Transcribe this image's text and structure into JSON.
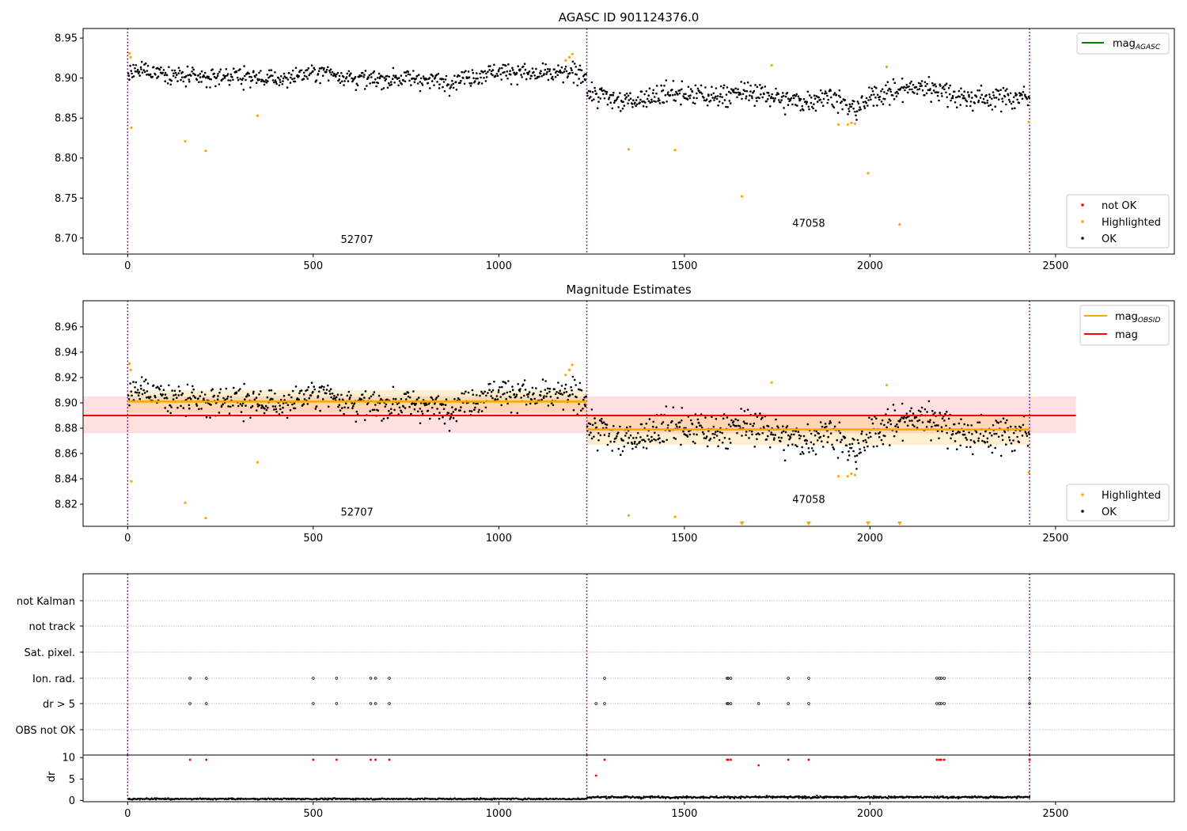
{
  "chart_data": [
    {
      "type": "scatter",
      "title": "AGASC ID 901124376.0",
      "xlim": [
        -120,
        2820
      ],
      "ylim": [
        8.68,
        8.962
      ],
      "xticks": [
        0,
        500,
        1000,
        1500,
        2000,
        2500
      ],
      "yticks": [
        8.7,
        8.75,
        8.8,
        8.85,
        8.9,
        8.95
      ],
      "ytick_decimals": 2,
      "grid": false,
      "obs_boundaries": [
        0,
        1237,
        2430
      ],
      "obs_labels": [
        {
          "text": "52707",
          "x": 618,
          "y": 8.694
        },
        {
          "text": "47058",
          "x": 1835,
          "y": 8.714
        }
      ],
      "ok_segments": [
        {
          "x0": 0,
          "x1": 1237,
          "mean": 8.902,
          "spread": 0.009
        },
        {
          "x0": 1237,
          "x1": 2430,
          "mean": 8.879,
          "spread": 0.011
        }
      ],
      "highlighted": {
        "x": [
          5,
          8,
          10,
          155,
          210,
          350,
          1180,
          1190,
          1198,
          1350,
          1475,
          1655,
          1735,
          1915,
          1940,
          1950,
          1960,
          1995,
          2045,
          2080,
          2428
        ],
        "y": [
          8.931,
          8.926,
          8.838,
          8.821,
          8.809,
          8.853,
          8.922,
          8.926,
          8.93,
          8.811,
          8.81,
          8.752,
          8.916,
          8.842,
          8.842,
          8.844,
          8.843,
          8.781,
          8.914,
          8.717,
          8.845
        ]
      },
      "legend_top": {
        "position": "upper right",
        "entries": [
          {
            "label": "mag",
            "sub": "AGASC",
            "color": "#008000"
          }
        ]
      },
      "legend_bottom": {
        "position": "lower right",
        "entries": [
          {
            "label": "not OK",
            "color": "#ff0000"
          },
          {
            "label": "Highlighted",
            "color": "#ffa500"
          },
          {
            "label": "OK",
            "color": "#000000"
          }
        ]
      }
    },
    {
      "type": "scatter",
      "title": "Magnitude Estimates",
      "xlim": [
        -120,
        2820
      ],
      "ylim": [
        8.8025,
        8.9806
      ],
      "xticks": [
        0,
        500,
        1000,
        1500,
        2000,
        2500
      ],
      "yticks": [
        8.82,
        8.84,
        8.86,
        8.88,
        8.9,
        8.92,
        8.94,
        8.96
      ],
      "ytick_decimals": 2,
      "grid": false,
      "obs_boundaries": [
        0,
        1237,
        2430
      ],
      "obs_labels": [
        {
          "text": "52707",
          "x": 618,
          "y": 8.811
        },
        {
          "text": "47058",
          "x": 1835,
          "y": 8.821
        }
      ],
      "mag": {
        "value": 8.89,
        "band": [
          8.876,
          8.905
        ],
        "x_range": [
          -120,
          2555
        ],
        "color": "#ff0000"
      },
      "mag_obsid": [
        {
          "x0": 0,
          "x1": 1237,
          "value": 8.901,
          "band": [
            8.892,
            8.91
          ]
        },
        {
          "x0": 1237,
          "x1": 2430,
          "value": 8.879,
          "band": [
            8.867,
            8.89
          ]
        }
      ],
      "highlighted": {
        "x": [
          5,
          8,
          10,
          155,
          210,
          350,
          1180,
          1190,
          1198,
          1350,
          1475,
          1735,
          1915,
          1940,
          1950,
          1960,
          2045,
          2428
        ],
        "y": [
          8.931,
          8.926,
          8.838,
          8.821,
          8.809,
          8.853,
          8.922,
          8.926,
          8.93,
          8.811,
          8.81,
          8.916,
          8.842,
          8.842,
          8.844,
          8.843,
          8.914,
          8.845
        ]
      },
      "below_range_markers_x": [
        1655,
        1835,
        1995,
        2080
      ],
      "legend_top": {
        "position": "upper right",
        "entries": [
          {
            "label": "mag",
            "sub": "OBSID",
            "color": "#ffa500"
          },
          {
            "label": "mag",
            "sub": "",
            "color": "#ff0000"
          }
        ]
      },
      "legend_bottom": {
        "position": "lower right",
        "entries": [
          {
            "label": "Highlighted",
            "color": "#ffa500"
          },
          {
            "label": "OK",
            "color": "#000000"
          }
        ]
      }
    },
    {
      "type": "scatter",
      "title": "",
      "xlim": [
        -120,
        2820
      ],
      "categories": [
        "not Kalman",
        "not track",
        "Sat. pixel.",
        "Ion. rad.",
        "dr > 5",
        "OBS not OK"
      ],
      "flags": {
        "Ion. rad.": [
          168,
          212,
          500,
          563,
          655,
          668,
          705,
          1285,
          1615,
          1618,
          1625,
          1780,
          1835,
          2180,
          2187,
          2192,
          2200,
          2430
        ],
        "dr > 5": [
          168,
          212,
          500,
          563,
          655,
          668,
          705,
          1262,
          1285,
          1615,
          1618,
          1625,
          1700,
          1780,
          1835,
          2180,
          2187,
          2192,
          2200,
          2430
        ]
      },
      "obs_boundaries": [
        0,
        1237,
        2430
      ]
    },
    {
      "type": "scatter",
      "title": "",
      "ylabel": "dr",
      "xlim": [
        -120,
        2820
      ],
      "ylim": [
        -0.3,
        10.6
      ],
      "xticks": [
        0,
        500,
        1000,
        1500,
        2000,
        2500
      ],
      "yticks": [
        0,
        5,
        10
      ],
      "ytick_decimals": 0,
      "typical_dr": [
        {
          "x0": 0,
          "x1": 1237,
          "mean": 0.35,
          "spread": 0.2
        },
        {
          "x0": 1237,
          "x1": 2430,
          "mean": 0.75,
          "spread": 0.3
        }
      ],
      "high_dr": {
        "x": [
          168,
          212,
          500,
          563,
          655,
          668,
          705,
          1262,
          1285,
          1615,
          1618,
          1625,
          1700,
          1780,
          1835,
          2180,
          2187,
          2192,
          2200,
          2430
        ],
        "y": [
          9.5,
          9.5,
          9.5,
          9.5,
          9.5,
          9.5,
          9.5,
          5.8,
          9.5,
          9.5,
          9.5,
          9.5,
          8.2,
          9.5,
          9.5,
          9.5,
          9.5,
          9.5,
          9.5,
          9.5
        ]
      },
      "obs_boundaries": [
        0,
        1237,
        2430
      ]
    }
  ]
}
